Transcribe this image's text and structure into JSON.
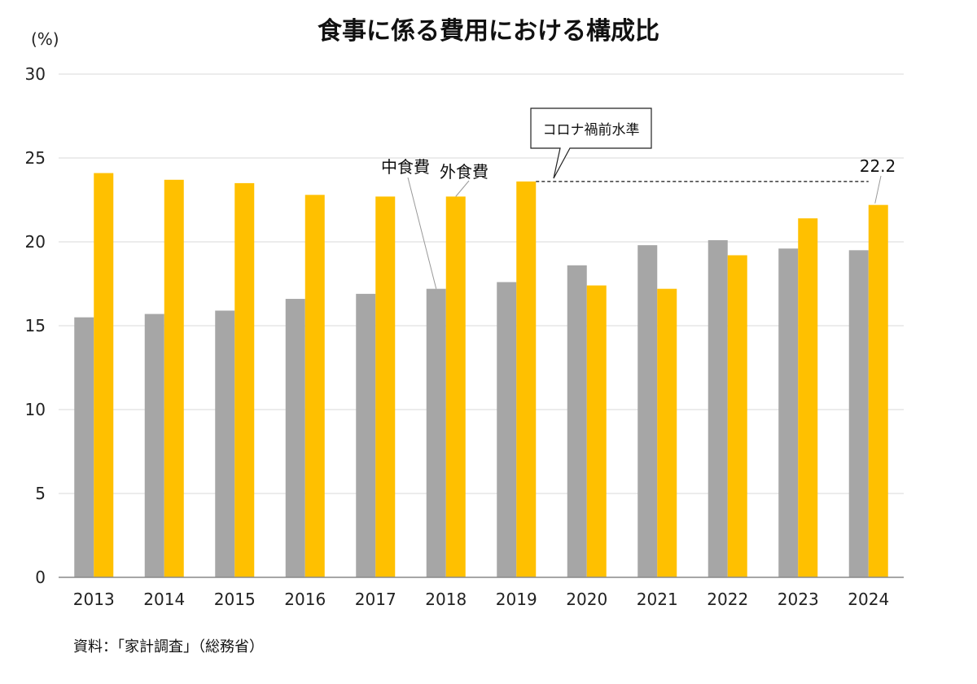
{
  "chart_data": {
    "type": "bar",
    "title": "食事に係る費用における構成比",
    "y_unit": "(%)",
    "ylim": [
      0,
      30
    ],
    "yticks": [
      0,
      5,
      10,
      15,
      20,
      25,
      30
    ],
    "grid": true,
    "categories": [
      "2013",
      "2014",
      "2015",
      "2016",
      "2017",
      "2018",
      "2019",
      "2020",
      "2021",
      "2022",
      "2023",
      "2024"
    ],
    "series": [
      {
        "name": "中食費",
        "color": "#a6a6a6",
        "values": [
          15.5,
          15.7,
          15.9,
          16.6,
          16.9,
          17.2,
          17.6,
          18.6,
          19.8,
          20.1,
          19.6,
          19.5
        ]
      },
      {
        "name": "外食費",
        "color": "#ffc000",
        "values": [
          24.1,
          23.7,
          23.5,
          22.8,
          22.7,
          22.7,
          23.6,
          17.4,
          17.2,
          19.2,
          21.4,
          22.2
        ]
      }
    ],
    "reference_line": {
      "label": "コロナ禍前水準",
      "value": 23.6,
      "from": "2019",
      "to": "2024"
    },
    "data_label": {
      "category": "2024",
      "series": "外食費",
      "text": "22.2"
    },
    "source": "資料：「家計調査」（総務省）"
  }
}
